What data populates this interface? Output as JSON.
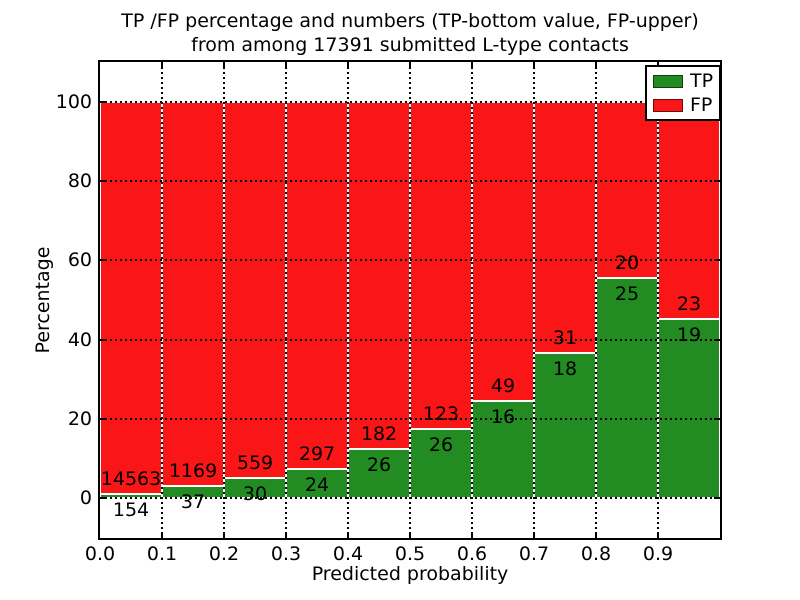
{
  "title": {
    "line1": "TP /FP percentage and numbers (TP-bottom value, FP-upper)",
    "line2": "from among 17391 submitted L-type contacts"
  },
  "colors": {
    "tp_green": "#228b22",
    "fp_red": "#fa1616",
    "grid": "#000000",
    "background": "#ffffff"
  },
  "legend": {
    "items": [
      {
        "label": "TP",
        "color": "#228b22"
      },
      {
        "label": "FP",
        "color": "#fa1616"
      }
    ]
  },
  "chart_data": {
    "type": "bar",
    "stacked": true,
    "normalized_to_100": true,
    "title": "TP /FP percentage and numbers (TP-bottom value, FP-upper) from among 17391 submitted L-type contacts",
    "xlabel": "Predicted probability",
    "ylabel": "Percentage",
    "xlim": [
      0.0,
      1.0
    ],
    "ylim": [
      -10,
      110
    ],
    "grid": "dotted",
    "legend_position": "upper right",
    "bin_width": 0.1,
    "x_tick_labels": [
      "0.0",
      "0.1",
      "0.2",
      "0.3",
      "0.4",
      "0.5",
      "0.6",
      "0.7",
      "0.8",
      "0.9"
    ],
    "y_tick_values": [
      0,
      20,
      40,
      60,
      80,
      100
    ],
    "bins": [
      {
        "x_start": 0.0,
        "tp": 154,
        "fp": 14563
      },
      {
        "x_start": 0.1,
        "tp": 37,
        "fp": 1169
      },
      {
        "x_start": 0.2,
        "tp": 30,
        "fp": 559
      },
      {
        "x_start": 0.3,
        "tp": 24,
        "fp": 297
      },
      {
        "x_start": 0.4,
        "tp": 26,
        "fp": 182
      },
      {
        "x_start": 0.5,
        "tp": 26,
        "fp": 123
      },
      {
        "x_start": 0.6,
        "tp": 16,
        "fp": 49
      },
      {
        "x_start": 0.7,
        "tp": 18,
        "fp": 31
      },
      {
        "x_start": 0.8,
        "tp": 25,
        "fp": 20
      },
      {
        "x_start": 0.9,
        "tp": 19,
        "fp": 23
      }
    ],
    "series": [
      {
        "name": "TP",
        "color": "#228b22",
        "values_pct": [
          1.05,
          3.07,
          5.09,
          7.48,
          12.5,
          17.45,
          24.62,
          36.73,
          55.56,
          45.24
        ]
      },
      {
        "name": "FP",
        "color": "#fa1616",
        "values_pct": [
          98.95,
          96.93,
          94.91,
          92.52,
          87.5,
          82.55,
          75.38,
          63.27,
          44.44,
          54.76
        ]
      }
    ]
  }
}
